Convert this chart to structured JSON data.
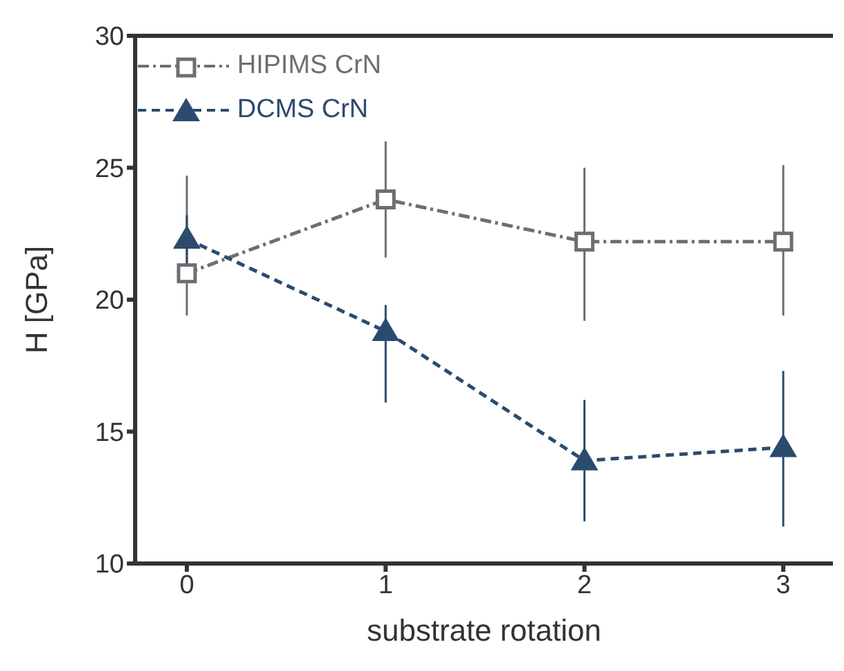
{
  "chart_data": {
    "type": "line",
    "xlabel": "substrate rotation",
    "ylabel": "H [GPa]",
    "x": [
      0,
      1,
      2,
      3
    ],
    "xlim": [
      -0.26,
      3.25
    ],
    "xticks": [
      0,
      1,
      2,
      3
    ],
    "ylim": [
      10,
      30
    ],
    "yticks": [
      10,
      15,
      20,
      25,
      30
    ],
    "legend": "top left",
    "series": [
      {
        "name": "HIPIMS CrN",
        "color": "#6e6e6e",
        "marker": "square",
        "line_style": "dashdot",
        "values": [
          21.0,
          23.8,
          22.2,
          22.2
        ],
        "errors": [
          [
            19.4,
            24.7
          ],
          [
            21.6,
            26.0
          ],
          [
            19.2,
            25.0
          ],
          [
            19.4,
            25.1
          ]
        ]
      },
      {
        "name": "DCMS CrN",
        "color": "#2b4a6e",
        "marker": "triangle",
        "line_style": "dashed",
        "values": [
          22.3,
          18.8,
          13.9,
          14.4
        ],
        "errors": [
          [
            21.2,
            23.2
          ],
          [
            16.1,
            19.8
          ],
          [
            11.6,
            16.2
          ],
          [
            11.4,
            17.3
          ]
        ]
      }
    ]
  }
}
